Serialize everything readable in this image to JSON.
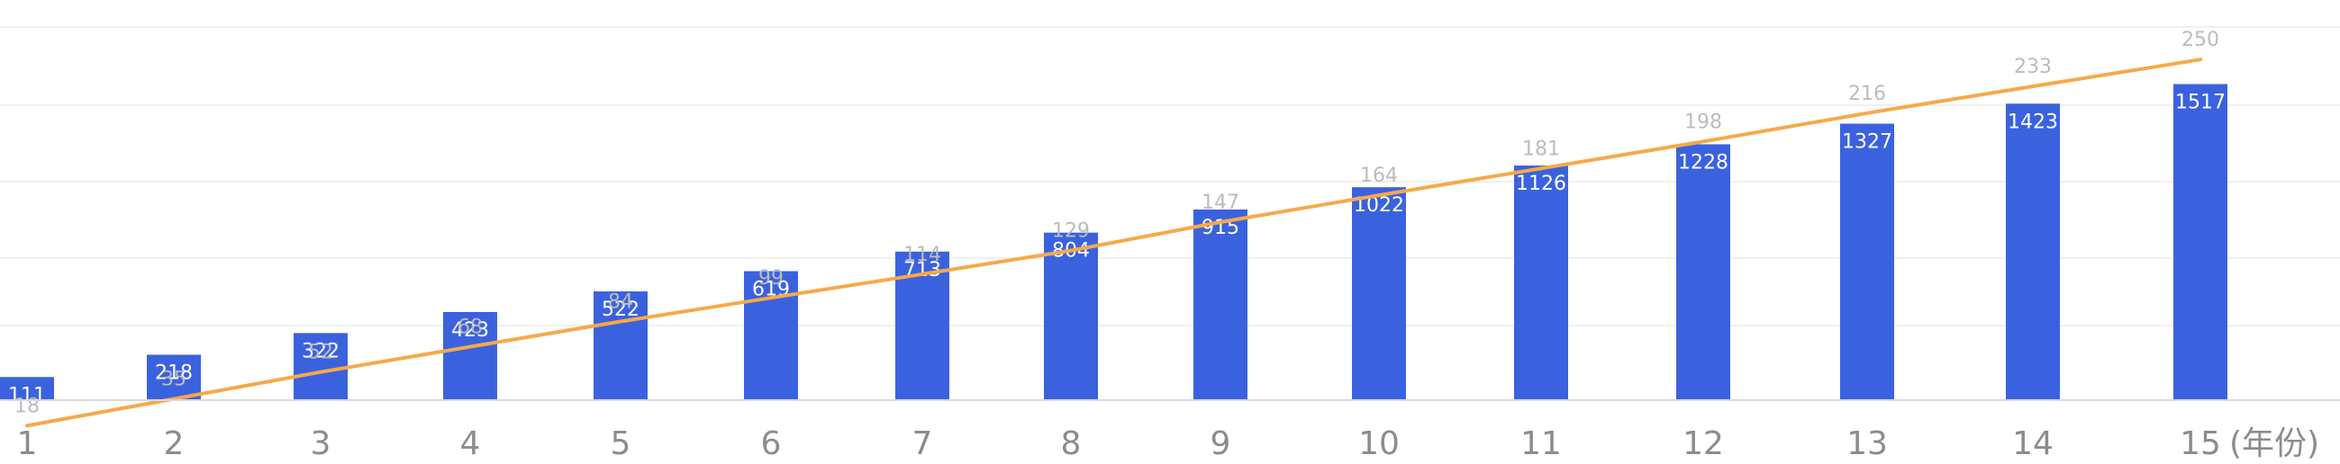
{
  "chart_data": {
    "type": "bar",
    "categories": [
      "1",
      "2",
      "3",
      "4",
      "5",
      "6",
      "7",
      "8",
      "9",
      "10",
      "11",
      "12",
      "13",
      "14",
      "15"
    ],
    "x_unit_label": "(年份)",
    "series": [
      {
        "type": "bar",
        "values": [
          111,
          218,
          322,
          423,
          522,
          619,
          713,
          804,
          915,
          1022,
          1126,
          1228,
          1327,
          1423,
          1517
        ],
        "color": "#3b62de"
      },
      {
        "type": "line",
        "values": [
          18,
          35,
          52,
          68,
          84,
          99,
          114,
          129,
          147,
          164,
          181,
          198,
          216,
          233,
          250
        ],
        "color": "#f6a94a"
      }
    ],
    "grid": true,
    "bar_ylim": [
      0,
      1800
    ],
    "line_ylim": [
      0,
      270
    ]
  }
}
